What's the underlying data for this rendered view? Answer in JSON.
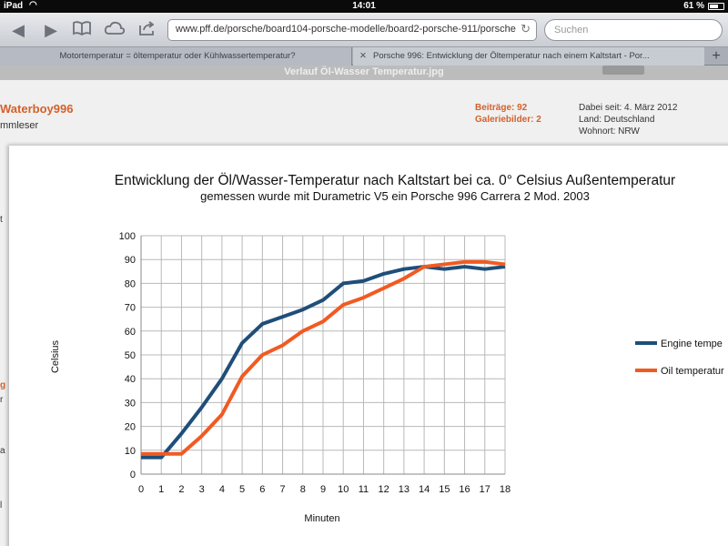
{
  "status": {
    "carrier": "iPad",
    "time": "14:01",
    "battery": "61 %"
  },
  "toolbar": {
    "url": "www.pff.de/porsche/board104-porsche-modelle/board2-porsche-911/porsche",
    "search_placeholder": "Suchen"
  },
  "tabs": [
    {
      "label": "Motortemperatur = öltemperatur oder Kühlwassertemperatur?"
    },
    {
      "label": "Porsche 996: Entwicklung der Öltemperatur nach einem Kaltstart - Por..."
    }
  ],
  "page": {
    "image_title": "Verlauf Öl-Wasser Temperatur.jpg",
    "username": "Waterboy996",
    "rank": "mmleser",
    "stats": [
      "Beiträge: 92",
      "Galeriebilder: 2"
    ],
    "userinfo": [
      "Dabei seit: 4. März 2012",
      "Land: Deutschland",
      "Wohnort: NRW"
    ],
    "left_fragments": [
      "t",
      "g",
      "r",
      "a",
      "l"
    ]
  },
  "chart_data": {
    "type": "line",
    "title": "Entwicklung der Öl/Wasser-Temperatur  nach Kaltstart bei ca. 0° Celsius Außentemperatur",
    "subtitle": "gemessen wurde mit Durametric V5 ein Porsche 996 Carrera 2 Mod. 2003",
    "xlabel": "Minuten",
    "ylabel": "Celsius",
    "xlim": [
      0,
      18
    ],
    "ylim": [
      0,
      100
    ],
    "x_ticks": [
      0,
      1,
      2,
      3,
      4,
      5,
      6,
      7,
      8,
      9,
      10,
      11,
      12,
      13,
      14,
      15,
      16,
      17,
      18
    ],
    "y_ticks": [
      0,
      10,
      20,
      30,
      40,
      50,
      60,
      70,
      80,
      90,
      100
    ],
    "grid": true,
    "legend": "right",
    "series": [
      {
        "name": "Engine tempe",
        "color": "#1f4e79",
        "x": [
          0,
          1,
          2,
          3,
          4,
          5,
          6,
          7,
          8,
          9,
          10,
          11,
          12,
          13,
          14,
          15,
          16,
          17,
          18
        ],
        "values": [
          7,
          7,
          17,
          28,
          40,
          55,
          63,
          66,
          69,
          73,
          80,
          81,
          84,
          86,
          87,
          86,
          87,
          86,
          87
        ]
      },
      {
        "name": "Oil temperatur",
        "color": "#f15a22",
        "x": [
          0,
          1,
          2,
          3,
          4,
          5,
          6,
          7,
          8,
          9,
          10,
          11,
          12,
          13,
          14,
          15,
          16,
          17,
          18
        ],
        "values": [
          8.5,
          8.5,
          8.5,
          16,
          25,
          41,
          50,
          54,
          60,
          64,
          71,
          74,
          78,
          82,
          87,
          88,
          89,
          89,
          88
        ]
      }
    ]
  }
}
